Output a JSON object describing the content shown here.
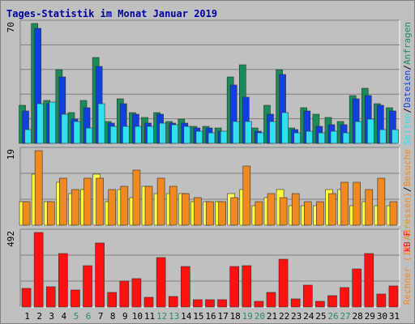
{
  "title": "Tages-Statistik im Monat Januar 2019",
  "colors": {
    "background": "#c0c0c0",
    "plot_bg": "#c0c0c0",
    "title": "#0000a0",
    "anfragen": "#1a8c5a",
    "dateien": "#1040e0",
    "seiten": "#30e0f0",
    "rechner": "#ffff40",
    "besuche": "#f08a20",
    "kb": "#ff1010",
    "weekend_label": "#2a8a6a",
    "weekday_label": "#000000"
  },
  "chart_data": [
    {
      "type": "bar",
      "panel": "top",
      "ylabel_max": "70",
      "ymax": 70,
      "right_label": {
        "parts": [
          {
            "text": "Seiten",
            "color": "#30e0f0"
          },
          {
            "text": "/",
            "color": "#000000"
          },
          {
            "text": "Dateien",
            "color": "#1040e0"
          },
          {
            "text": "/",
            "color": "#000000"
          },
          {
            "text": "Anfragen",
            "color": "#1a8c5a"
          }
        ]
      },
      "categories": [
        "1",
        "2",
        "3",
        "4",
        "5",
        "6",
        "7",
        "8",
        "9",
        "10",
        "11",
        "12",
        "13",
        "14",
        "15",
        "16",
        "17",
        "18",
        "19",
        "20",
        "21",
        "22",
        "23",
        "24",
        "25",
        "26",
        "27",
        "28",
        "29",
        "30",
        "31"
      ],
      "series": [
        {
          "name": "Anfragen",
          "color": "#1a8c5a",
          "values": [
            22,
            70,
            25,
            43,
            18,
            25,
            50,
            13,
            26,
            18,
            15,
            18,
            13,
            14,
            10,
            10,
            9,
            39,
            46,
            9,
            22,
            43,
            9,
            21,
            17,
            15,
            13,
            28,
            32,
            23,
            21
          ]
        },
        {
          "name": "Dateien",
          "color": "#1040e0",
          "values": [
            19,
            67,
            23,
            39,
            14,
            21,
            45,
            12,
            23,
            17,
            12,
            17,
            12,
            12,
            9,
            9,
            7,
            34,
            27,
            7,
            17,
            40,
            8,
            19,
            10,
            11,
            11,
            26,
            28,
            22,
            19
          ]
        },
        {
          "name": "Seiten",
          "color": "#30e0f0",
          "values": [
            8,
            23,
            24,
            17,
            13,
            9,
            23,
            10,
            10,
            10,
            10,
            12,
            11,
            10,
            7,
            6,
            7,
            13,
            13,
            6,
            13,
            18,
            6,
            7,
            6,
            7,
            6,
            13,
            14,
            8,
            8
          ]
        }
      ]
    },
    {
      "type": "bar",
      "panel": "middle",
      "ylabel_max": "19",
      "ymax": 19,
      "right_label": {
        "parts": [
          {
            "text": "Rechner (IP-Adressen)",
            "color": "#f08a20"
          },
          {
            "text": "/",
            "color": "#000000"
          },
          {
            "text": "Besuche",
            "color": "#f08a20"
          }
        ]
      },
      "categories": [
        "1",
        "2",
        "3",
        "4",
        "5",
        "6",
        "7",
        "8",
        "9",
        "10",
        "11",
        "12",
        "13",
        "14",
        "15",
        "16",
        "17",
        "18",
        "19",
        "20",
        "21",
        "22",
        "23",
        "24",
        "25",
        "26",
        "27",
        "28",
        "29",
        "30",
        "31"
      ],
      "series": [
        {
          "name": "Rechner",
          "color": "#ffff40",
          "values": [
            6,
            13,
            6,
            11,
            8,
            9,
            13,
            6,
            9,
            7,
            10,
            8,
            8,
            8,
            6,
            6,
            6,
            8,
            9,
            5,
            7,
            9,
            5,
            5,
            5,
            9,
            9,
            5,
            6,
            5,
            5
          ]
        },
        {
          "name": "Besuche",
          "color": "#f08a20",
          "values": [
            6,
            19,
            6,
            12,
            9,
            12,
            12,
            9,
            10,
            14,
            10,
            12,
            10,
            8,
            7,
            6,
            6,
            7,
            15,
            6,
            8,
            7,
            8,
            6,
            6,
            8,
            11,
            11,
            9,
            12,
            6
          ]
        }
      ]
    },
    {
      "type": "bar",
      "panel": "bottom",
      "ylabel_max": "492",
      "ymax": 492,
      "right_label": {
        "parts": [
          {
            "text": "kB F",
            "color": "#ff1010"
          }
        ]
      },
      "categories": [
        "1",
        "2",
        "3",
        "4",
        "5",
        "6",
        "7",
        "8",
        "9",
        "10",
        "11",
        "12",
        "13",
        "14",
        "15",
        "16",
        "17",
        "18",
        "19",
        "20",
        "21",
        "22",
        "23",
        "24",
        "25",
        "26",
        "27",
        "28",
        "29",
        "30",
        "31"
      ],
      "series": [
        {
          "name": "kB F",
          "color": "#ff1010",
          "values": [
            125,
            492,
            135,
            352,
            110,
            275,
            420,
            95,
            170,
            185,
            65,
            325,
            70,
            270,
            50,
            50,
            50,
            265,
            275,
            40,
            95,
            315,
            55,
            145,
            35,
            75,
            130,
            250,
            355,
            85,
            140
          ]
        }
      ]
    }
  ],
  "x_labels": [
    {
      "text": "1",
      "weekend": false
    },
    {
      "text": "2",
      "weekend": false
    },
    {
      "text": "3",
      "weekend": false
    },
    {
      "text": "4",
      "weekend": false
    },
    {
      "text": "5",
      "weekend": true
    },
    {
      "text": "6",
      "weekend": true
    },
    {
      "text": "7",
      "weekend": false
    },
    {
      "text": "8",
      "weekend": false
    },
    {
      "text": "9",
      "weekend": false
    },
    {
      "text": "10",
      "weekend": false
    },
    {
      "text": "11",
      "weekend": false
    },
    {
      "text": "12",
      "weekend": true
    },
    {
      "text": "13",
      "weekend": true
    },
    {
      "text": "14",
      "weekend": false
    },
    {
      "text": "15",
      "weekend": false
    },
    {
      "text": "16",
      "weekend": false
    },
    {
      "text": "17",
      "weekend": false
    },
    {
      "text": "18",
      "weekend": false
    },
    {
      "text": "19",
      "weekend": true
    },
    {
      "text": "20",
      "weekend": true
    },
    {
      "text": "21",
      "weekend": false
    },
    {
      "text": "22",
      "weekend": false
    },
    {
      "text": "23",
      "weekend": false
    },
    {
      "text": "24",
      "weekend": false
    },
    {
      "text": "25",
      "weekend": false
    },
    {
      "text": "26",
      "weekend": true
    },
    {
      "text": "27",
      "weekend": true
    },
    {
      "text": "28",
      "weekend": false
    },
    {
      "text": "29",
      "weekend": false
    },
    {
      "text": "30",
      "weekend": false
    },
    {
      "text": "31",
      "weekend": false
    }
  ]
}
